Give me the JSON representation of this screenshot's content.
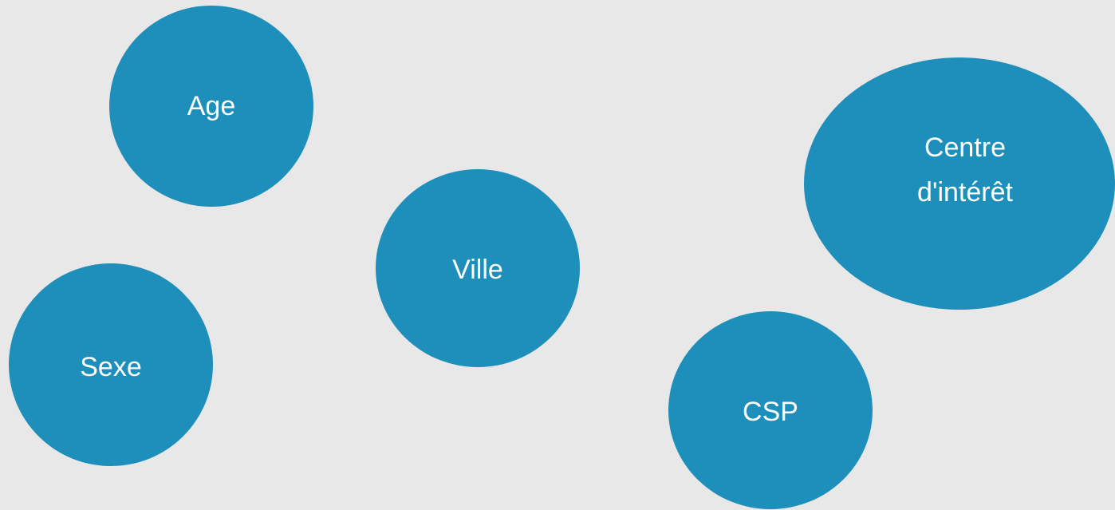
{
  "nodes": [
    {
      "label": "Age"
    },
    {
      "label": "Sexe"
    },
    {
      "label": "Ville"
    },
    {
      "label": "CSP"
    },
    {
      "lines": [
        "Centre",
        "d'intérêt"
      ]
    }
  ]
}
